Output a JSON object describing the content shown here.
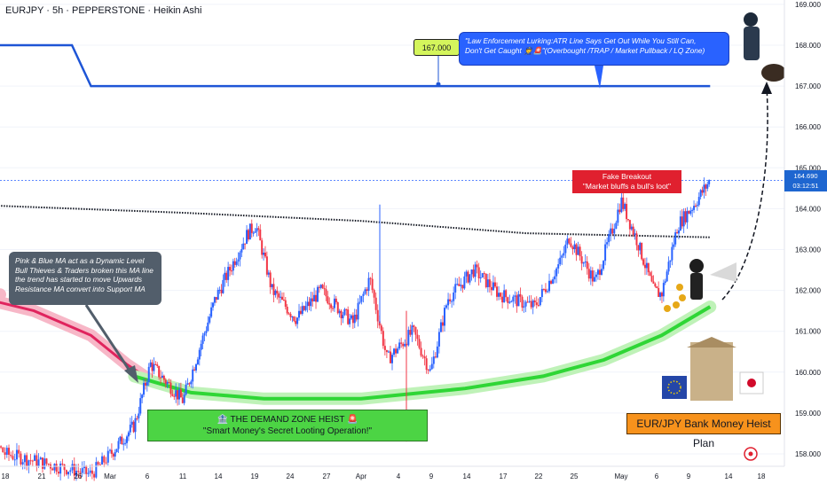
{
  "header": {
    "title": "EURJPY · 5h · PEPPERSTONE · Heikin Ashi"
  },
  "price_axis": {
    "current_price": "164.690",
    "countdown": "03:12:51"
  },
  "annotations": {
    "atr_level": "167.000",
    "atr_note_line1": "\"Law Enforcement Lurking:ATR Line Says Get Out While You Still Can,",
    "atr_note_line2": "Don't Get Caught 👮🚨\"(Overbought /TRAP / Market Pullback / LQ Zone)",
    "ma_note_line1": "Pink & Blue MA act as a Dynamic Level",
    "ma_note_line2": "Bull Thieves & Traders broken this MA line",
    "ma_note_line3": "the trend has started to move Upwards",
    "ma_note_line4": "Resistance MA convert into Support MA",
    "fake_breakout_title": "Fake Breakout",
    "fake_breakout_text": "\"Market bluffs a bull's loot\"",
    "demand_zone_title": "🏦 THE DEMAND ZONE HEIST 🚨",
    "demand_zone_text": "\"Smart Money's Secret Looting Operation!\"",
    "plan_label": "EUR/JPY Bank Money Heist Plan"
  },
  "colors": {
    "bull": "#2962ff",
    "bear": "#f23645",
    "atr_line": "#1e55d6",
    "support_ma": "#2fd636",
    "resistance_ma": "#e0245e",
    "long_ma": "#131722"
  },
  "chart_data": {
    "type": "candlestick",
    "symbol": "EURJPY",
    "interval": "5h",
    "broker": "PEPPERSTONE",
    "style": "Heikin Ashi",
    "x_ticks": [
      "18",
      "21",
      "26",
      "Mar",
      "6",
      "11",
      "14",
      "19",
      "24",
      "27",
      "Apr",
      "4",
      "9",
      "14",
      "17",
      "22",
      "25",
      "May",
      "6",
      "9",
      "14",
      "18"
    ],
    "y_ticks": [
      158.0,
      159.0,
      160.0,
      161.0,
      162.0,
      163.0,
      164.0,
      165.0,
      166.0,
      167.0,
      168.0,
      169.0
    ],
    "ylim": [
      157.7,
      169.3
    ],
    "current_price": 164.69,
    "atr_line": [
      {
        "date": "Feb 14",
        "value": 168.0
      },
      {
        "date": "Feb 25",
        "value": 168.0
      },
      {
        "date": "Feb 27",
        "value": 167.0
      },
      {
        "date": "May 12",
        "value": 167.0
      }
    ],
    "long_ma": [
      {
        "date": "Feb 14",
        "value": 164.1
      },
      {
        "date": "Mar 10",
        "value": 163.9
      },
      {
        "date": "Apr 1",
        "value": 163.7
      },
      {
        "date": "Apr 20",
        "value": 163.4
      },
      {
        "date": "May 12",
        "value": 163.3
      }
    ],
    "pink_ma": [
      {
        "date": "Feb 14",
        "value": 161.9
      },
      {
        "date": "Feb 21",
        "value": 161.5
      },
      {
        "date": "Feb 27",
        "value": 160.9
      },
      {
        "date": "Mar 3",
        "value": 160.2
      },
      {
        "date": "Mar 6",
        "value": 159.8
      }
    ],
    "green_ma": [
      {
        "date": "Mar 4",
        "value": 159.9
      },
      {
        "date": "Mar 11",
        "value": 159.5
      },
      {
        "date": "Mar 20",
        "value": 159.35
      },
      {
        "date": "Apr 1",
        "value": 159.35
      },
      {
        "date": "Apr 13",
        "value": 159.6
      },
      {
        "date": "Apr 22",
        "value": 159.9
      },
      {
        "date": "Apr 29",
        "value": 160.3
      },
      {
        "date": "May 6",
        "value": 160.9
      },
      {
        "date": "May 12",
        "value": 161.6
      }
    ],
    "price_path": [
      {
        "date": "Feb 14",
        "value": 158.9
      },
      {
        "date": "Feb 18",
        "value": 158.0
      },
      {
        "date": "Feb 27",
        "value": 157.5
      },
      {
        "date": "Mar 4",
        "value": 158.7
      },
      {
        "date": "Mar 6",
        "value": 160.2
      },
      {
        "date": "Mar 10",
        "value": 159.3
      },
      {
        "date": "Mar 14",
        "value": 161.8
      },
      {
        "date": "Mar 18",
        "value": 163.4
      },
      {
        "date": "Mar 19",
        "value": 163.6
      },
      {
        "date": "Mar 21",
        "value": 162.0
      },
      {
        "date": "Mar 24",
        "value": 161.3
      },
      {
        "date": "Mar 27",
        "value": 162.0
      },
      {
        "date": "Mar 31",
        "value": 161.2
      },
      {
        "date": "Apr 2",
        "value": 162.3
      },
      {
        "date": "Apr 4",
        "value": 160.3
      },
      {
        "date": "Apr 7",
        "value": 161.0
      },
      {
        "date": "Apr 9",
        "value": 160.0
      },
      {
        "date": "Apr 11",
        "value": 161.8
      },
      {
        "date": "Apr 14",
        "value": 162.5
      },
      {
        "date": "Apr 17",
        "value": 161.9
      },
      {
        "date": "Apr 21",
        "value": 161.6
      },
      {
        "date": "Apr 24",
        "value": 162.7
      },
      {
        "date": "Apr 25",
        "value": 163.3
      },
      {
        "date": "Apr 28",
        "value": 162.2
      },
      {
        "date": "Apr 30",
        "value": 163.5
      },
      {
        "date": "May 1",
        "value": 164.2
      },
      {
        "date": "May 3",
        "value": 163.2
      },
      {
        "date": "May 5",
        "value": 162.0
      },
      {
        "date": "May 6",
        "value": 161.9
      },
      {
        "date": "May 8",
        "value": 163.6
      },
      {
        "date": "May 10",
        "value": 164.1
      },
      {
        "date": "May 12",
        "value": 164.7
      }
    ]
  }
}
